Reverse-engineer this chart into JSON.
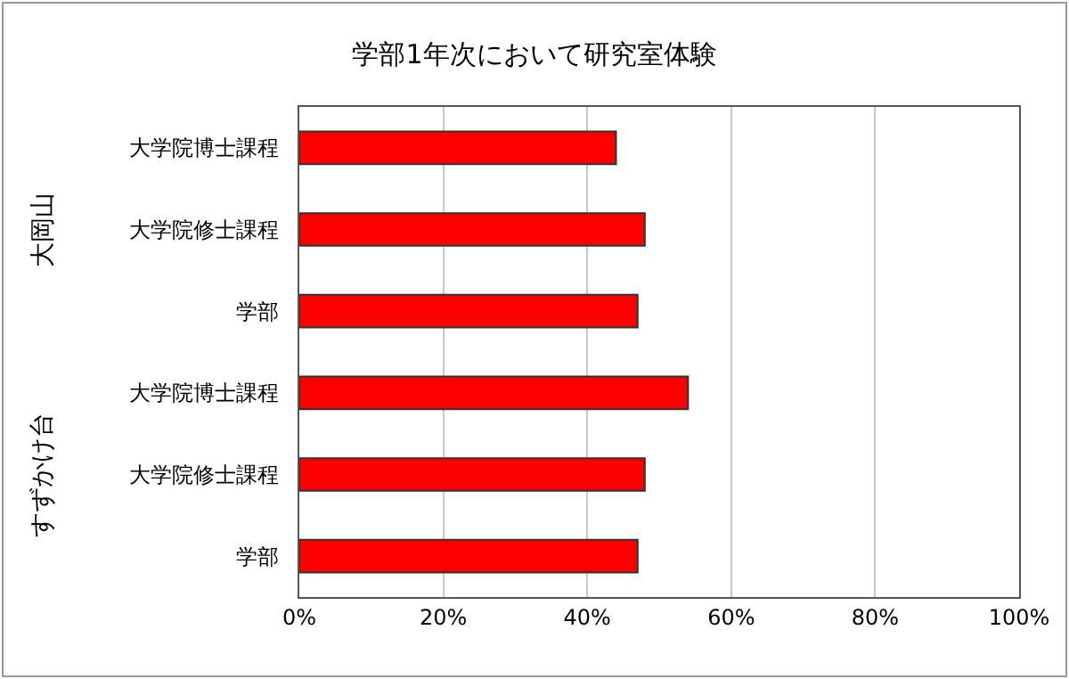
{
  "chart_data": {
    "type": "bar",
    "orientation": "horizontal",
    "title": "学部1年次において研究室体験",
    "categories": [
      "大学院博士課程",
      "大学院修士課程",
      "学部",
      "大学院博士課程",
      "大学院修士課程",
      "学部"
    ],
    "values": [
      44,
      48,
      47,
      54,
      48,
      47
    ],
    "color": "#ff0000",
    "xlim": [
      0,
      100
    ],
    "xticks": [
      {
        "value": 0,
        "label": "0%"
      },
      {
        "value": 20,
        "label": "20%"
      },
      {
        "value": 40,
        "label": "40%"
      },
      {
        "value": 60,
        "label": "60%"
      },
      {
        "value": 80,
        "label": "80%"
      },
      {
        "value": 100,
        "label": "100%"
      }
    ],
    "grid": "x",
    "annotations": [
      "大岡山",
      "すずかけ台"
    ]
  }
}
